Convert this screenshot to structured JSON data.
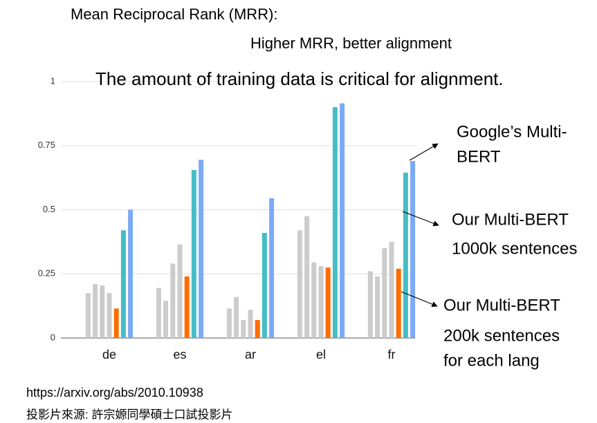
{
  "chart_data": {
    "type": "bar",
    "title": "Mean Reciprocal Rank (MRR):",
    "subtitle": "Higher MRR, better alignment",
    "annotations": [
      "The amount of training data is critical for alignment.",
      "Google’s Multi-",
      "BERT",
      "Our Multi-BERT",
      "1000k sentences",
      "Our Multi-BERT",
      "200k sentences",
      "for each lang"
    ],
    "categories": [
      "de",
      "es",
      "ar",
      "el",
      "fr"
    ],
    "series": [
      {
        "color": "#cccccc",
        "values": [
          0.175,
          0.195,
          0.115,
          0.42,
          0.26
        ]
      },
      {
        "color": "#cccccc",
        "values": [
          0.21,
          0.145,
          0.16,
          0.475,
          0.24
        ]
      },
      {
        "color": "#cccccc",
        "values": [
          0.205,
          0.29,
          0.07,
          0.295,
          0.35
        ]
      },
      {
        "color": "#cccccc",
        "values": [
          0.175,
          0.365,
          0.11,
          0.28,
          0.375
        ]
      },
      {
        "color": "#ff6d01",
        "values": [
          0.115,
          0.24,
          0.07,
          0.275,
          0.27
        ]
      },
      {
        "color": "#46bdc6",
        "values": [
          0.42,
          0.655,
          0.41,
          0.9,
          0.645
        ]
      },
      {
        "color": "#7baaf7",
        "values": [
          0.5,
          0.695,
          0.545,
          0.915,
          0.69
        ]
      }
    ],
    "ylim": [
      0,
      1
    ],
    "yticks": [
      0,
      0.25,
      0.5,
      0.75,
      1
    ],
    "grid": true
  },
  "footer": {
    "url": "https://arxiv.org/abs/2010.10938",
    "credit": "投影片來源: 許宗嫄同學碩士口試投影片"
  }
}
